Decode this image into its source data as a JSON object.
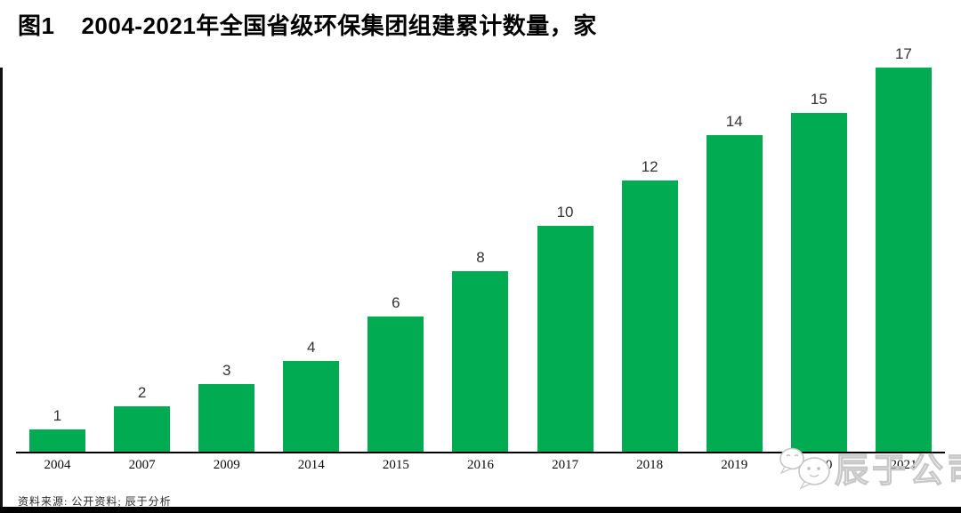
{
  "figure": {
    "number_label": "图1",
    "title": "2004-2021年全国省级环保集团组建累计数量，家",
    "source": "资料来源: 公开资料; 辰于分析"
  },
  "watermark": {
    "text": "辰于公司",
    "icon": "wechat-chat-bubbles-logo",
    "color": "#c8c8c8"
  },
  "chart_data": {
    "type": "bar",
    "title": "图1 2004-2021年全国省级环保集团组建累计数量，家",
    "categories": [
      "2004",
      "2007",
      "2009",
      "2014",
      "2015",
      "2016",
      "2017",
      "2018",
      "2019",
      "2020",
      "2021"
    ],
    "values": [
      1,
      2,
      3,
      4,
      6,
      8,
      10,
      12,
      14,
      15,
      17
    ],
    "xlabel": "",
    "ylabel": "",
    "ylim": [
      0,
      17
    ],
    "bar_color": "#00AB51",
    "value_label_color": "#333333",
    "axis_color": "#000000",
    "grid": false,
    "legend": false,
    "value_labels_shown": true
  }
}
